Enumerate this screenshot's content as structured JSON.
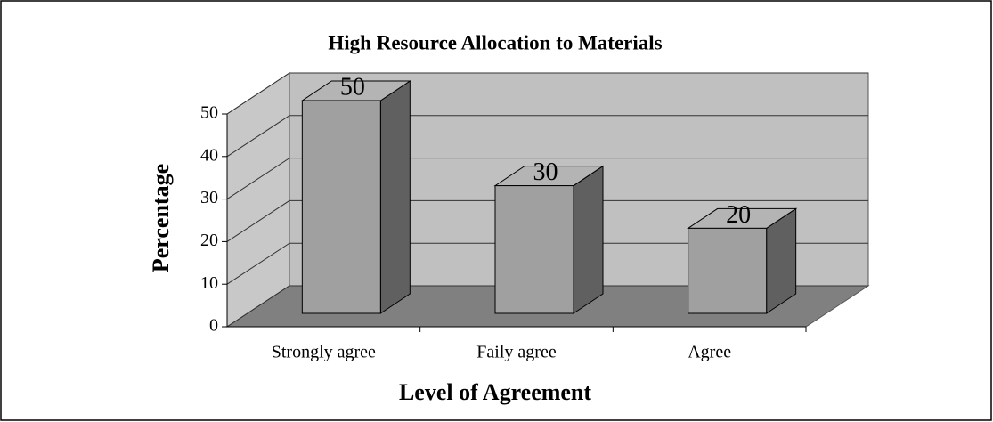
{
  "chart_data": {
    "type": "bar3d",
    "title": "High Resource Allocation to Materials",
    "categories": [
      "Strongly agree",
      "Faily agree",
      "Agree"
    ],
    "values": [
      50,
      30,
      20
    ],
    "ylim": [
      0,
      50
    ],
    "yticks": [
      0,
      10,
      20,
      30,
      40,
      50
    ],
    "grid": true,
    "xlabel": "Level of Agreement",
    "ylabel": "Percentage",
    "color": "#a0a0a0"
  }
}
